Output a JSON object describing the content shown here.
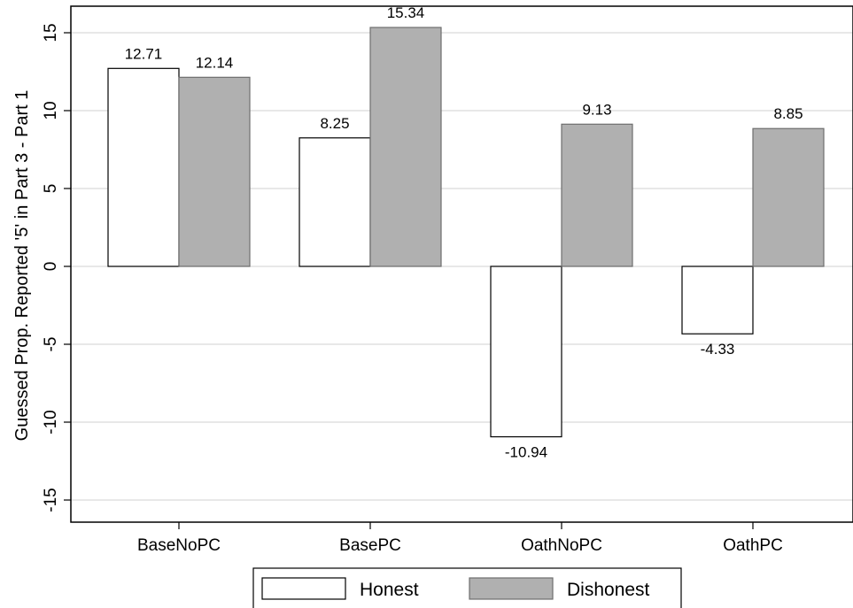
{
  "chart_data": {
    "type": "bar",
    "title": "",
    "xlabel": "",
    "ylabel": "Guessed Prop. Reported '5' in Part 3 - Part 1",
    "categories": [
      "BaseNoPC",
      "BasePC",
      "OathNoPC",
      "OathPC"
    ],
    "series": [
      {
        "name": "Honest",
        "values": [
          12.71,
          8.25,
          -10.94,
          -4.33
        ],
        "color": "#ffffff"
      },
      {
        "name": "Dishonest",
        "values": [
          12.14,
          15.34,
          9.13,
          8.85
        ],
        "color": "#b0b0b0"
      }
    ],
    "data_labels": [
      [
        "12.71",
        "8.25",
        "-10.94",
        "-4.33"
      ],
      [
        "12.14",
        "15.34",
        "9.13",
        "8.85"
      ]
    ],
    "yticks": [
      "15",
      "10",
      "5",
      "0",
      "-5",
      "-10",
      "-15"
    ],
    "ytick_values": [
      15,
      10,
      5,
      0,
      -5,
      -10,
      -15
    ],
    "ylim": [
      -16.5,
      16.5
    ],
    "grid": "horizontal",
    "legend_position": "bottom"
  }
}
